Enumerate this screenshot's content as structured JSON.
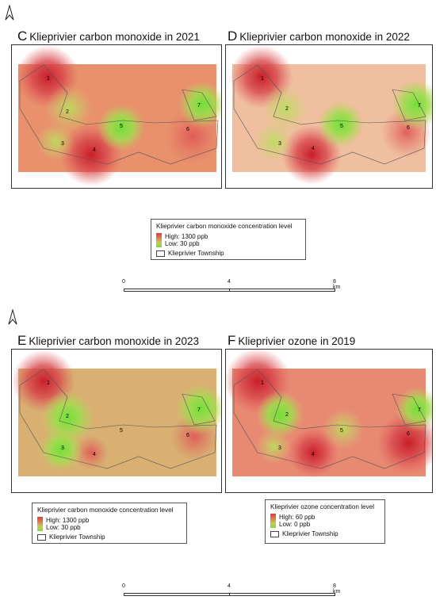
{
  "panels": {
    "c": {
      "letter": "C",
      "title": "Klieprivier carbon monoxide in 2021"
    },
    "d": {
      "letter": "D",
      "title": "Klieprivier carbon monoxide in 2022"
    },
    "e": {
      "letter": "E",
      "title": "Klieprivier carbon monoxide in 2023"
    },
    "f": {
      "letter": "F",
      "title": "Klieprivier ozone in 2019"
    }
  },
  "point_labels": [
    "1",
    "2",
    "3",
    "4",
    "5",
    "6",
    "7"
  ],
  "legend_co": {
    "title": "Klieprivier carbon monoxide concentration level",
    "high": "High: 1300 ppb",
    "low": "Low: 30 ppb",
    "township": "Klieprivier Township"
  },
  "legend_ozone": {
    "title": "Klieprivier ozone concentration level",
    "high": "High: 60 ppb",
    "low": "Low: 0 ppb",
    "township": "Klieprivier Township"
  },
  "scale": {
    "t0": "0",
    "t1": "4",
    "t2": "8 km"
  },
  "colors": {
    "high": "#e23b3b",
    "mid": "#d4a460",
    "low": "#7fdc3c"
  }
}
